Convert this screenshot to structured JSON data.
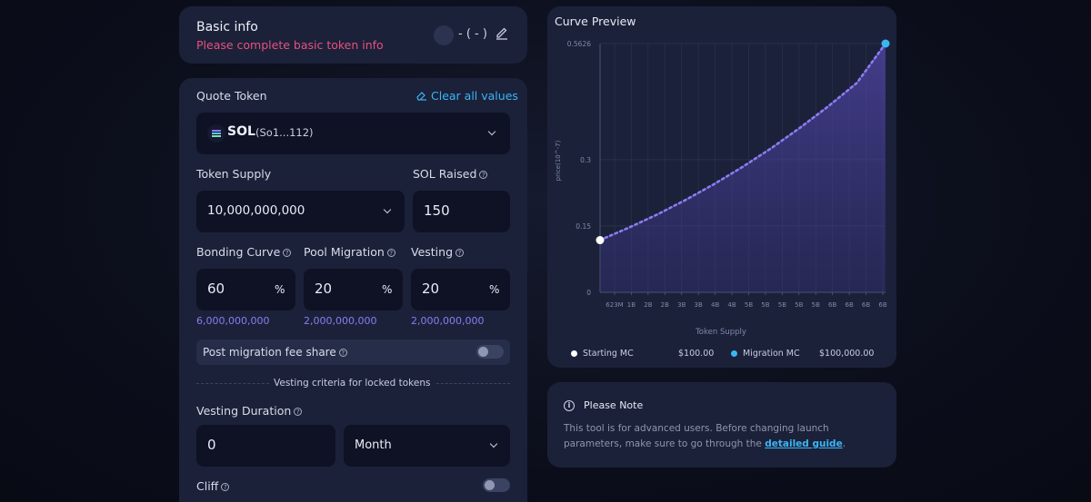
{
  "basic_info": {
    "title": "Basic info",
    "warning": "Please complete basic token info",
    "token_placeholder": "- ( - )"
  },
  "form": {
    "quote_token_label": "Quote Token",
    "clear_all_label": "Clear all values",
    "quote_token_symbol": "SOL",
    "quote_token_address": "(So1...112)",
    "token_supply_label": "Token Supply",
    "token_supply_value": "10,000,000,000",
    "sol_raised_label": "SOL Raised",
    "sol_raised_value": "150",
    "bonding_curve_label": "Bonding Curve",
    "bonding_curve_value": "60",
    "bonding_curve_amount": "6,000,000,000",
    "pool_migration_label": "Pool Migration",
    "pool_migration_value": "20",
    "pool_migration_amount": "2,000,000,000",
    "vesting_label": "Vesting",
    "vesting_value": "20",
    "vesting_amount": "2,000,000,000",
    "percent_symbol": "%",
    "post_migration_label": "Post migration fee share",
    "post_migration_enabled": false,
    "vesting_criteria_label": "Vesting criteria for locked tokens",
    "vesting_duration_label": "Vesting Duration",
    "vesting_duration_value": "0",
    "vesting_unit": "Month",
    "cliff_label": "Cliff",
    "cliff_enabled": false
  },
  "curve_preview": {
    "title": "Curve Preview",
    "legend": {
      "start_label": "Starting MC",
      "start_value": "$100.00",
      "migration_label": "Migration MC",
      "migration_value": "$100,000.00"
    },
    "colors": {
      "line": "#8b7cf0",
      "start_point": "#ffffff",
      "end_point": "#3bb6f5"
    }
  },
  "note": {
    "title": "Please Note",
    "text": "This tool is for advanced users. Before changing launch parameters, make sure to go through the",
    "link": "detailed guide",
    "trailing": "."
  },
  "chart_data": {
    "type": "area",
    "title": "",
    "xlabel": "Token Supply",
    "ylabel": "price(10^-7)",
    "x_ticks": [
      "623M",
      "1B",
      "2B",
      "2B",
      "3B",
      "3B",
      "4B",
      "4B",
      "5B",
      "5B",
      "5B",
      "5B",
      "5B",
      "6B",
      "6B",
      "6B",
      "6B"
    ],
    "y_ticks": [
      "0",
      "0.15",
      "0.3",
      "0.5626"
    ],
    "ylim": [
      0,
      0.5626
    ],
    "series": [
      {
        "x": [
          0,
          0.1,
          0.2,
          0.3,
          0.4,
          0.5,
          0.6,
          0.7,
          0.8,
          0.9,
          1.0
        ],
        "values": [
          0.118,
          0.146,
          0.176,
          0.209,
          0.245,
          0.284,
          0.326,
          0.372,
          0.421,
          0.474,
          0.5626
        ]
      }
    ],
    "grid": true
  }
}
